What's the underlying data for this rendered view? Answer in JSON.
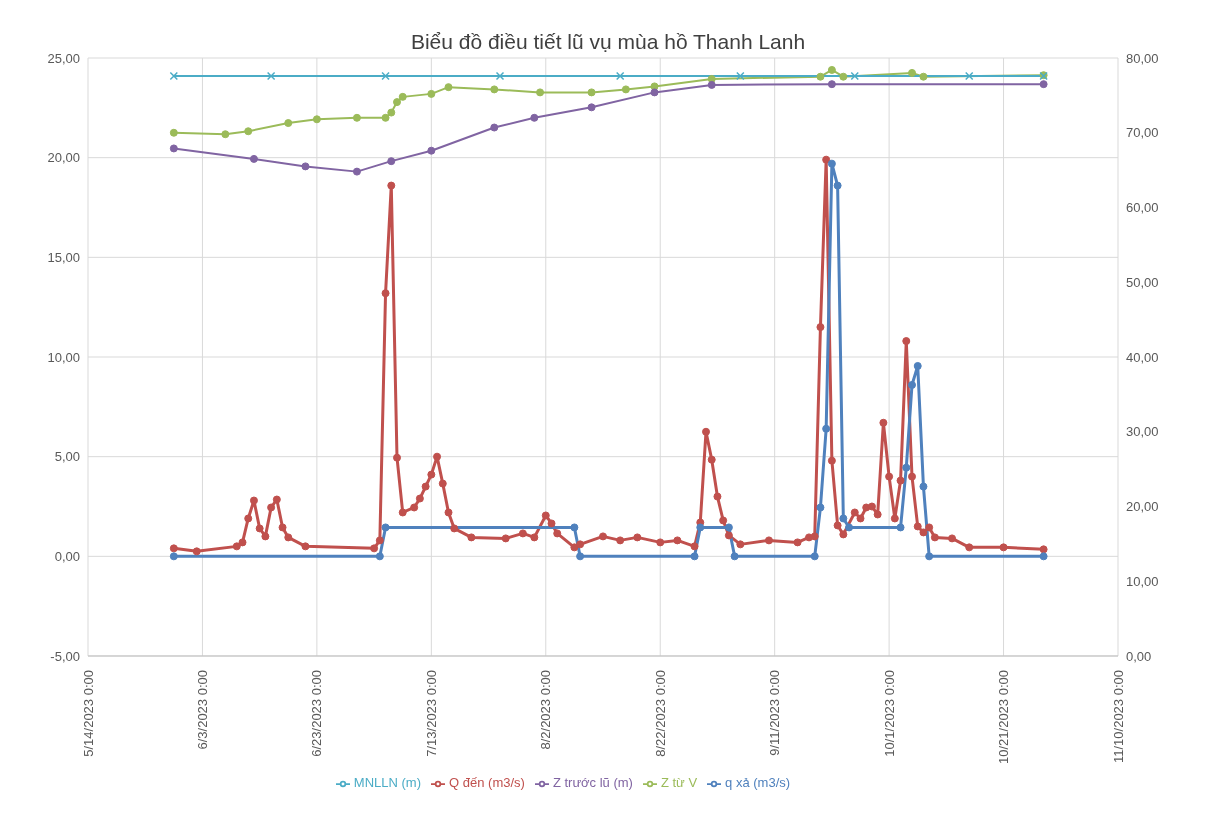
{
  "chart_data": {
    "type": "line",
    "title": "Biểu đồ điều tiết lũ vụ mùa hồ Thanh Lanh",
    "grid": true,
    "legend": "bottom",
    "marker": "circle",
    "line_style": "solid",
    "xlim": [
      "2023-05-14",
      "2023-11-10"
    ],
    "xticks": [
      {
        "value": "2023-05-14",
        "label": "5/14/2023 0:00"
      },
      {
        "value": "2023-06-03",
        "label": "6/3/2023 0:00"
      },
      {
        "value": "2023-06-23",
        "label": "6/23/2023 0:00"
      },
      {
        "value": "2023-07-13",
        "label": "7/13/2023 0:00"
      },
      {
        "value": "2023-08-02",
        "label": "8/2/2023 0:00"
      },
      {
        "value": "2023-08-22",
        "label": "8/22/2023 0:00"
      },
      {
        "value": "2023-09-11",
        "label": "9/11/2023 0:00"
      },
      {
        "value": "2023-10-01",
        "label": "10/1/2023 0:00"
      },
      {
        "value": "2023-10-21",
        "label": "10/21/2023 0:00"
      },
      {
        "value": "2023-11-10",
        "label": "11/10/2023 0:00"
      }
    ],
    "ylim": [
      -5,
      25
    ],
    "yticks": [
      {
        "value": -5,
        "label": "-5,00"
      },
      {
        "value": 0,
        "label": "0,00"
      },
      {
        "value": 5,
        "label": "5,00"
      },
      {
        "value": 10,
        "label": "10,00"
      },
      {
        "value": 15,
        "label": "15,00"
      },
      {
        "value": 20,
        "label": "20,00"
      },
      {
        "value": 25,
        "label": "25,00"
      }
    ],
    "y2lim": [
      0,
      80
    ],
    "y2ticks": [
      {
        "value": 0,
        "label": "0,00"
      },
      {
        "value": 10,
        "label": "10,00"
      },
      {
        "value": 20,
        "label": "20,00"
      },
      {
        "value": 30,
        "label": "30,00"
      },
      {
        "value": 40,
        "label": "40,00"
      },
      {
        "value": 50,
        "label": "50,00"
      },
      {
        "value": 60,
        "label": "60,00"
      },
      {
        "value": 70,
        "label": "70,00"
      },
      {
        "value": 80,
        "label": "80,00"
      }
    ],
    "series": [
      {
        "name": "Q đến (m3/s)",
        "color": "#c0504d",
        "x": [
          "2023-05-29",
          "2023-06-02",
          "2023-06-09",
          "2023-06-10",
          "2023-06-11",
          "2023-06-12",
          "2023-06-13",
          "2023-06-14",
          "2023-06-15",
          "2023-06-16",
          "2023-06-17",
          "2023-06-18",
          "2023-06-21",
          "2023-07-03",
          "2023-07-04",
          "2023-07-05",
          "2023-07-06",
          "2023-07-07",
          "2023-07-08",
          "2023-07-10",
          "2023-07-11",
          "2023-07-12",
          "2023-07-13",
          "2023-07-14",
          "2023-07-15",
          "2023-07-16",
          "2023-07-17",
          "2023-07-20",
          "2023-07-26",
          "2023-07-29",
          "2023-07-31",
          "2023-08-02",
          "2023-08-03",
          "2023-08-04",
          "2023-08-07",
          "2023-08-08",
          "2023-08-12",
          "2023-08-15",
          "2023-08-18",
          "2023-08-22",
          "2023-08-25",
          "2023-08-28",
          "2023-08-29",
          "2023-08-30",
          "2023-08-31",
          "2023-09-01",
          "2023-09-02",
          "2023-09-03",
          "2023-09-05",
          "2023-09-10",
          "2023-09-15",
          "2023-09-17",
          "2023-09-18",
          "2023-09-19",
          "2023-09-20",
          "2023-09-21",
          "2023-09-22",
          "2023-09-23",
          "2023-09-25",
          "2023-09-26",
          "2023-09-27",
          "2023-09-28",
          "2023-09-29",
          "2023-09-30",
          "2023-10-01",
          "2023-10-02",
          "2023-10-03",
          "2023-10-04",
          "2023-10-05",
          "2023-10-06",
          "2023-10-07",
          "2023-10-08",
          "2023-10-09",
          "2023-10-12",
          "2023-10-15",
          "2023-10-21",
          "2023-10-28"
        ],
        "values": [
          0.4,
          0.25,
          0.5,
          0.7,
          1.9,
          2.8,
          1.4,
          1.0,
          2.45,
          2.85,
          1.45,
          0.95,
          0.5,
          0.4,
          0.8,
          13.2,
          18.6,
          4.95,
          2.2,
          2.45,
          2.9,
          3.5,
          4.1,
          5.0,
          3.65,
          2.2,
          1.4,
          0.95,
          0.9,
          1.15,
          0.95,
          2.05,
          1.65,
          1.15,
          0.45,
          0.6,
          1.0,
          0.8,
          0.95,
          0.7,
          0.8,
          0.5,
          1.7,
          6.25,
          4.85,
          3.0,
          1.8,
          1.05,
          0.6,
          0.8,
          0.7,
          0.95,
          1.0,
          11.5,
          19.9,
          4.8,
          1.55,
          1.1,
          2.2,
          1.9,
          2.45,
          2.5,
          2.1,
          6.7,
          4.0,
          1.9,
          3.8,
          10.8,
          4.0,
          1.5,
          1.2,
          1.45,
          0.95,
          0.9,
          0.45,
          0.45,
          0.35
        ]
      },
      {
        "name": "q xả (m3/s)",
        "color": "#4f81bd",
        "x": [
          "2023-05-29",
          "2023-07-04",
          "2023-07-05",
          "2023-08-07",
          "2023-08-08",
          "2023-08-28",
          "2023-08-29",
          "2023-09-03",
          "2023-09-04",
          "2023-09-18",
          "2023-09-19",
          "2023-09-20",
          "2023-09-21",
          "2023-09-22",
          "2023-09-23",
          "2023-09-24",
          "2023-10-03",
          "2023-10-04",
          "2023-10-05",
          "2023-10-06",
          "2023-10-07",
          "2023-10-08",
          "2023-10-28"
        ],
        "values": [
          0,
          0,
          1.45,
          1.45,
          0,
          0,
          1.45,
          1.45,
          0,
          0,
          2.45,
          6.4,
          19.7,
          18.6,
          1.9,
          1.45,
          1.45,
          4.45,
          8.6,
          9.55,
          3.5,
          0,
          0
        ]
      },
      {
        "name": "Z từ V",
        "color": "#9bbb59",
        "axis": "y2",
        "x": [
          "2023-05-29",
          "2023-06-07",
          "2023-06-11",
          "2023-06-18",
          "2023-06-23",
          "2023-06-30",
          "2023-07-05",
          "2023-07-06",
          "2023-07-07",
          "2023-07-08",
          "2023-07-13",
          "2023-07-16",
          "2023-07-24",
          "2023-08-01",
          "2023-08-10",
          "2023-08-16",
          "2023-08-21",
          "2023-08-31",
          "2023-09-19",
          "2023-09-21",
          "2023-09-23",
          "2023-10-05",
          "2023-10-07",
          "2023-10-28"
        ],
        "values": [
          70.0,
          69.8,
          70.2,
          71.3,
          71.8,
          72.0,
          72.0,
          72.7,
          74.1,
          74.8,
          75.2,
          76.1,
          75.8,
          75.4,
          75.4,
          75.8,
          76.2,
          77.2,
          77.5,
          78.4,
          77.5,
          78.0,
          77.5,
          77.7
        ]
      },
      {
        "name": "Z trước lũ (m)",
        "color": "#8064a2",
        "axis": "y2",
        "x": [
          "2023-05-29",
          "2023-06-12",
          "2023-06-21",
          "2023-06-30",
          "2023-07-06",
          "2023-07-13",
          "2023-07-24",
          "2023-07-31",
          "2023-08-10",
          "2023-08-21",
          "2023-08-31",
          "2023-09-21",
          "2023-10-28"
        ],
        "values": [
          67.9,
          66.5,
          65.5,
          64.8,
          66.2,
          67.6,
          70.7,
          72.0,
          73.4,
          75.4,
          76.4,
          76.5,
          76.5
        ]
      },
      {
        "name": "MNLLN (m)",
        "color": "#4bacc6",
        "axis": "y2",
        "marker": "cross",
        "x": [
          "2023-05-29",
          "2023-06-15",
          "2023-07-05",
          "2023-07-25",
          "2023-08-15",
          "2023-09-05",
          "2023-09-25",
          "2023-10-15",
          "2023-10-28"
        ],
        "values": [
          77.6,
          77.6,
          77.6,
          77.6,
          77.6,
          77.6,
          77.6,
          77.6,
          77.6
        ]
      }
    ]
  }
}
